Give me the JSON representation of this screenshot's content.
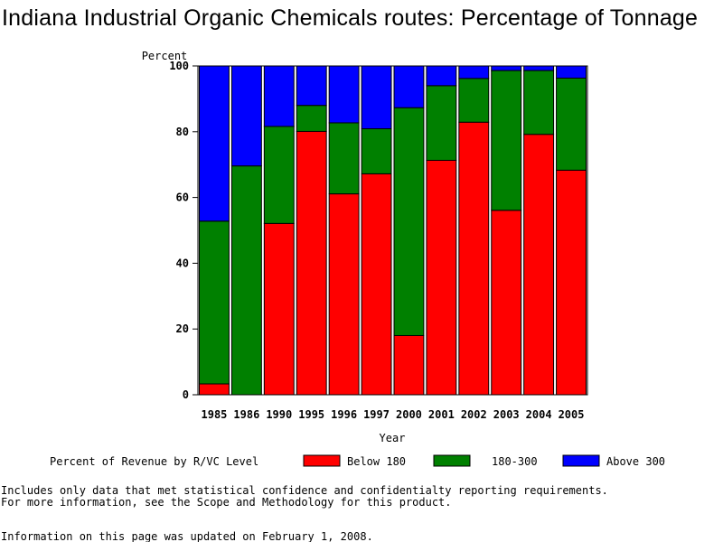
{
  "title": "Indiana Industrial Organic Chemicals routes: Percentage of Tonnage",
  "chart_data": {
    "type": "bar",
    "stacked": true,
    "categories": [
      "1985",
      "1986",
      "1990",
      "1995",
      "1996",
      "1997",
      "2000",
      "2001",
      "2002",
      "2003",
      "2004",
      "2005"
    ],
    "series": [
      {
        "name": "Below 180",
        "color": "#ff0000",
        "values": [
          3.3,
          0,
          52.1,
          80.1,
          61.1,
          67.2,
          18.0,
          71.3,
          82.9,
          56.1,
          79.2,
          68.3
        ]
      },
      {
        "name": "180-300",
        "color": "#008000",
        "values": [
          49.5,
          69.6,
          29.5,
          7.9,
          21.6,
          13.7,
          69.3,
          22.7,
          13.3,
          42.5,
          19.4,
          28.0
        ]
      },
      {
        "name": "Above 300",
        "color": "#0000ff",
        "values": [
          47.2,
          30.4,
          18.4,
          12.0,
          17.3,
          19.1,
          12.7,
          6.0,
          3.8,
          1.4,
          1.4,
          3.7
        ]
      }
    ],
    "ylabel": "Percent",
    "xlabel": "Year",
    "ylim": [
      0,
      100
    ],
    "yticks": [
      0,
      20,
      40,
      60,
      80,
      100
    ],
    "legend": {
      "title": "Percent of Revenue by R/VC Level",
      "placement": "bottom"
    }
  },
  "footnote": {
    "line1": "Includes only data that met statistical confidence and confidentialty reporting requirements.",
    "line2": "For more information, see the Scope and Methodology for this product.",
    "updated": "Information on this page was updated on February 1, 2008."
  }
}
